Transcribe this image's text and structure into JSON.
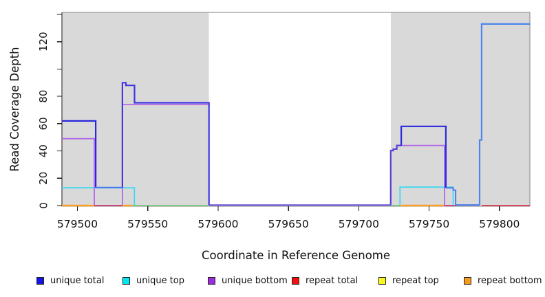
{
  "chart_data": {
    "type": "line",
    "subtype": "step-coverage",
    "xlabel": "Coordinate in Reference Genome",
    "ylabel": "Read Coverage Depth",
    "xlim": [
      579489,
      579821.6
    ],
    "ylim": [
      0,
      141.5
    ],
    "grid": false,
    "background_region_fill": "#d9d9d9",
    "x_ticks": {
      "values": [
        579500,
        579550,
        579600,
        579650,
        579700,
        579750,
        579800
      ],
      "labels": [
        "579500",
        "579550",
        "579600",
        "579650",
        "579700",
        "579750",
        "579800"
      ]
    },
    "y_ticks": {
      "values": [
        0,
        20,
        40,
        60,
        80,
        100,
        120,
        140
      ],
      "labels": [
        "0",
        "20",
        "40",
        "60",
        "80",
        "",
        "120",
        ""
      ]
    },
    "shaded_regions": [
      {
        "x0": 579489,
        "x1": 579593.5
      },
      {
        "x0": 579722.7,
        "x1": 579821.6
      }
    ],
    "series": [
      {
        "name": "repeat-bottom-zero-left-a",
        "color": "#ff9d26",
        "width": 2.4,
        "points": [
          [
            579489,
            0
          ],
          [
            579512,
            0
          ]
        ]
      },
      {
        "name": "repeat-total-zero-left",
        "color": "#c9497e",
        "width": 2.0,
        "points": [
          [
            579512,
            0
          ],
          [
            579532,
            0
          ]
        ]
      },
      {
        "name": "repeat-bottom-zero-left-b",
        "color": "#ff9d26",
        "width": 2.4,
        "points": [
          [
            579532,
            0
          ],
          [
            579539.3,
            0
          ]
        ]
      },
      {
        "name": "repeat-top-zero-left",
        "color": "#7cc87c",
        "width": 1.8,
        "points": [
          [
            579539.3,
            0
          ],
          [
            579593.5,
            0
          ]
        ]
      },
      {
        "name": "repeat-top-zero-right",
        "color": "#7cc87c",
        "width": 1.8,
        "points": [
          [
            579722.7,
            0
          ],
          [
            579729.3,
            0
          ]
        ]
      },
      {
        "name": "repeat-bottom-zero-right",
        "color": "#ff9d26",
        "width": 2.4,
        "points": [
          [
            579729.8,
            0
          ],
          [
            579760.6,
            0
          ]
        ]
      },
      {
        "name": "repeat-total-zero-mid",
        "color": "#c9497e",
        "width": 2.0,
        "points": [
          [
            579760.6,
            0
          ],
          [
            579768.8,
            0
          ]
        ]
      },
      {
        "name": "repeat-total-zero-far-right",
        "color": "#d84a62",
        "width": 2.0,
        "points": [
          [
            579787.3,
            0
          ],
          [
            579821.6,
            0
          ]
        ]
      },
      {
        "name": "unique-top-left",
        "color": "#3fd9f0",
        "width": 1.8,
        "points": [
          [
            579489,
            13
          ],
          [
            579540.5,
            13
          ],
          [
            579540.5,
            0.3
          ]
        ]
      },
      {
        "name": "unique-top-right",
        "color": "#3fd9f0",
        "width": 1.8,
        "points": [
          [
            579729.3,
            0.3
          ],
          [
            579729.3,
            13.5
          ],
          [
            579767.1,
            13.5
          ],
          [
            579767.1,
            0.3
          ]
        ]
      },
      {
        "name": "unique-bottom-left",
        "color": "#b266e6",
        "width": 1.8,
        "points": [
          [
            579489,
            49
          ],
          [
            579512,
            49
          ],
          [
            579512,
            0.3
          ]
        ]
      },
      {
        "name": "unique-bottom-mid",
        "color": "#b266e6",
        "width": 1.8,
        "points": [
          [
            579532,
            0.3
          ],
          [
            579532,
            74
          ],
          [
            579593.8,
            74
          ]
        ]
      },
      {
        "name": "unique-bottom-right",
        "color": "#b266e6",
        "width": 1.8,
        "points": [
          [
            579727,
            44
          ],
          [
            579760.9,
            44
          ],
          [
            579760.9,
            0.3
          ]
        ]
      },
      {
        "name": "unique-zero-middle",
        "color": "#6a4fd8",
        "width": 2.0,
        "points": [
          [
            579593.5,
            0.4
          ],
          [
            579722.7,
            0.4
          ]
        ]
      },
      {
        "name": "unique-rise-right",
        "color": "#5b3fd6",
        "width": 2.2,
        "points": [
          [
            579722.7,
            0.4
          ],
          [
            579722.7,
            40.3
          ],
          [
            579724.5,
            40.3
          ],
          [
            579724.5,
            41.4
          ],
          [
            579727,
            41.4
          ],
          [
            579727,
            44
          ],
          [
            579730.2,
            44
          ]
        ]
      },
      {
        "name": "unique-total-left-62",
        "color": "#2828de",
        "width": 2.2,
        "points": [
          [
            579489,
            62
          ],
          [
            579513,
            62
          ],
          [
            579513,
            13.2
          ]
        ]
      },
      {
        "name": "unique-total-left-13",
        "color": "#4b79ee",
        "width": 2.0,
        "points": [
          [
            579513,
            13.2
          ],
          [
            579532,
            13.2
          ]
        ]
      },
      {
        "name": "unique-total-spike-75",
        "color": "#4335e5",
        "width": 2.2,
        "points": [
          [
            579532,
            13.2
          ],
          [
            579532,
            90
          ],
          [
            579534.5,
            90
          ],
          [
            579534.5,
            88
          ],
          [
            579540.6,
            88
          ],
          [
            579540.6,
            75.3
          ],
          [
            579593.5,
            75.3
          ],
          [
            579593.5,
            0.4
          ]
        ]
      },
      {
        "name": "unique-total-right-58",
        "color": "#2828de",
        "width": 2.2,
        "points": [
          [
            579730.2,
            44
          ],
          [
            579730.2,
            58
          ],
          [
            579761.9,
            58
          ],
          [
            579761.9,
            13
          ]
        ]
      },
      {
        "name": "unique-total-right-13",
        "color": "#4b79ee",
        "width": 2.0,
        "points": [
          [
            579761.9,
            13
          ],
          [
            579767.1,
            13
          ],
          [
            579767.1,
            11.3
          ],
          [
            579768.8,
            11.3
          ],
          [
            579768.8,
            0.4
          ]
        ]
      },
      {
        "name": "unique-total-right-0",
        "color": "#4b79ee",
        "width": 2.2,
        "points": [
          [
            579768.8,
            0.4
          ],
          [
            579785.9,
            0.4
          ]
        ]
      },
      {
        "name": "unique-total-tall-133",
        "color": "#4b86ec",
        "width": 2.2,
        "points": [
          [
            579785.9,
            0.4
          ],
          [
            579785.9,
            48
          ],
          [
            579787.3,
            48
          ],
          [
            579787.3,
            133
          ],
          [
            579821.6,
            133
          ]
        ]
      }
    ],
    "legend": [
      {
        "label": "unique total",
        "color": "#1414e6"
      },
      {
        "label": "unique top",
        "color": "#00e6f2"
      },
      {
        "label": "unique bottom",
        "color": "#9a2fd9"
      },
      {
        "label": "repeat total",
        "color": "#f50f0f"
      },
      {
        "label": "repeat top",
        "color": "#f7f719"
      },
      {
        "label": "repeat bottom",
        "color": "#f59b1b"
      }
    ],
    "legend_position": "bottom"
  }
}
